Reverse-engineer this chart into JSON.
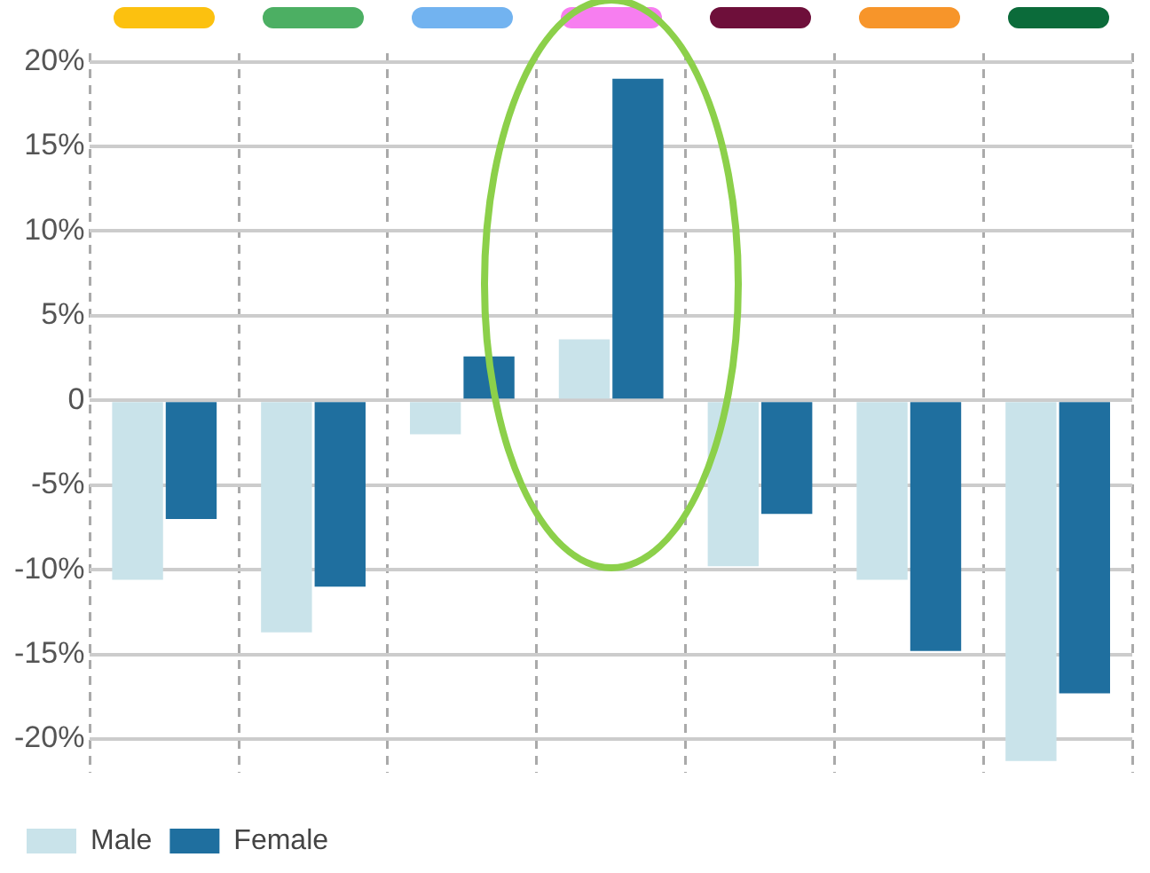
{
  "chart_data": {
    "type": "bar",
    "categories": [
      null,
      null,
      null,
      null,
      null,
      null,
      null
    ],
    "series": [
      {
        "name": "Male",
        "color": "#c9e3ea",
        "values": [
          -10.6,
          -13.7,
          -2.0,
          3.6,
          -9.8,
          -10.6,
          -21.3
        ]
      },
      {
        "name": "Female",
        "color": "#1f6f9f",
        "values": [
          -7.0,
          -11.0,
          2.6,
          19.0,
          -6.7,
          -14.8,
          -17.3
        ]
      }
    ],
    "ylim": [
      -22,
      20.5
    ],
    "yticks": [
      {
        "value": 20,
        "label": "20%"
      },
      {
        "value": 15,
        "label": "15%"
      },
      {
        "value": 10,
        "label": "10%"
      },
      {
        "value": 5,
        "label": "5%"
      },
      0,
      {
        "value": -5,
        "label": "-5%"
      },
      {
        "value": -10,
        "label": "-10%"
      },
      {
        "value": -15,
        "label": "-15%"
      },
      {
        "value": -20,
        "label": "-20%"
      }
    ],
    "grid": true,
    "legend": "bottom left"
  }
}
